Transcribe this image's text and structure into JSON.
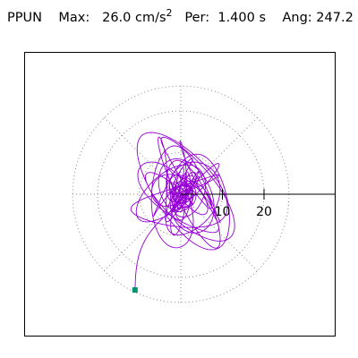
{
  "header": {
    "station": "PPUN",
    "max_label": "Max:",
    "max_value": "26.0",
    "unit": "cm/s",
    "unit_exp": "2",
    "per_label": "Per:",
    "per_value": "1.400 s",
    "ang_label": "Ang:",
    "ang_value": "247.2"
  },
  "chart_data": {
    "type": "line",
    "kind": "polar particle-motion",
    "radial_ticks": [
      "10",
      "20"
    ],
    "rmax": 26.0,
    "grid": true,
    "grid_style": "dotted",
    "trace_color": "#9400d3",
    "end_marker_color": "#00946e",
    "end_point": {
      "x": -11.0,
      "y": -23.0
    }
  }
}
